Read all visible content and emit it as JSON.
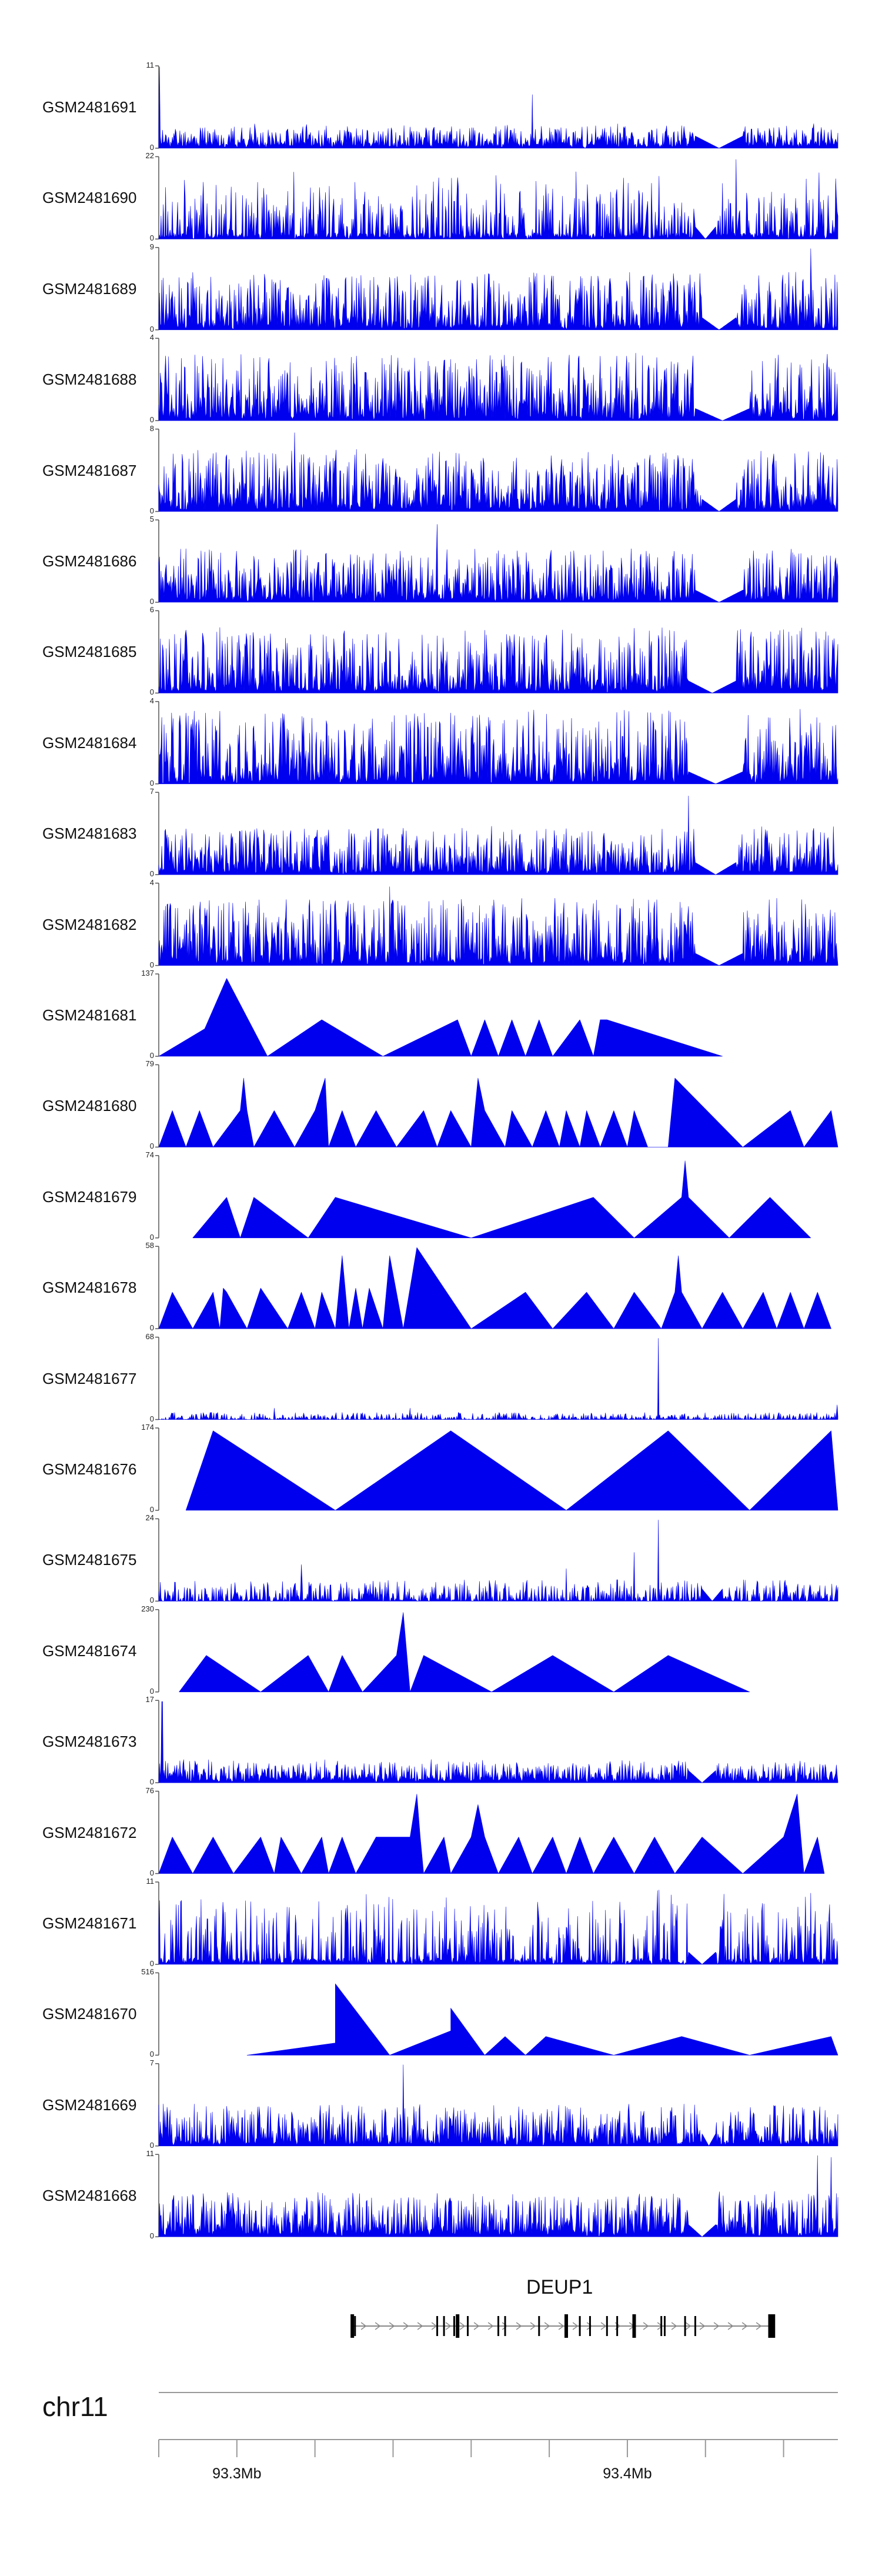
{
  "chart_data": {
    "type": "area",
    "tracks": [
      {
        "name": "GSM2481691",
        "ymax": "11",
        "ymin": "0",
        "profile": "dense",
        "seed": 11,
        "base": 0.16,
        "peaks": [
          {
            "x": 0.001,
            "h": 1.0
          },
          {
            "x": 0.55,
            "h": 0.66
          }
        ],
        "gaps": [
          [
            0.79,
            0.86
          ]
        ]
      },
      {
        "name": "GSM2481690",
        "ymax": "22",
        "ymin": "0",
        "profile": "spiky",
        "seed": 22,
        "base": 0.55,
        "peaks": [
          {
            "x": 0.85,
            "h": 0.98
          }
        ],
        "gaps": [
          [
            0.79,
            0.82
          ]
        ]
      },
      {
        "name": "GSM2481689",
        "ymax": "9",
        "ymin": "0",
        "profile": "dense",
        "seed": 33,
        "base": 0.42,
        "peaks": [
          {
            "x": 0.96,
            "h": 1.0
          }
        ],
        "gaps": [
          [
            0.8,
            0.85
          ]
        ]
      },
      {
        "name": "GSM2481688",
        "ymax": "4",
        "ymin": "0",
        "profile": "dense",
        "seed": 44,
        "base": 0.5,
        "peaks": [],
        "gaps": [
          [
            0.79,
            0.87
          ]
        ]
      },
      {
        "name": "GSM2481687",
        "ymax": "8",
        "ymin": "0",
        "profile": "dense",
        "seed": 55,
        "base": 0.45,
        "peaks": [
          {
            "x": 0.2,
            "h": 0.97
          }
        ],
        "gaps": [
          [
            0.8,
            0.85
          ]
        ]
      },
      {
        "name": "GSM2481686",
        "ymax": "5",
        "ymin": "0",
        "profile": "dense",
        "seed": 66,
        "base": 0.4,
        "peaks": [
          {
            "x": 0.41,
            "h": 0.96
          }
        ],
        "gaps": [
          [
            0.79,
            0.86
          ]
        ]
      },
      {
        "name": "GSM2481685",
        "ymax": "6",
        "ymin": "0",
        "profile": "dense",
        "seed": 77,
        "base": 0.48,
        "peaks": [],
        "gaps": [
          [
            0.78,
            0.85
          ]
        ]
      },
      {
        "name": "GSM2481684",
        "ymax": "4",
        "ymin": "0",
        "profile": "dense",
        "seed": 88,
        "base": 0.55,
        "peaks": [],
        "gaps": [
          [
            0.78,
            0.86
          ]
        ]
      },
      {
        "name": "GSM2481683",
        "ymax": "7",
        "ymin": "0",
        "profile": "dense",
        "seed": 99,
        "base": 0.35,
        "peaks": [
          {
            "x": 0.78,
            "h": 0.97
          }
        ],
        "gaps": [
          [
            0.79,
            0.85
          ]
        ]
      },
      {
        "name": "GSM2481682",
        "ymax": "4",
        "ymin": "0",
        "profile": "dense",
        "seed": 111,
        "base": 0.5,
        "peaks": [
          {
            "x": 0.34,
            "h": 0.97
          }
        ],
        "gaps": [
          [
            0.79,
            0.86
          ]
        ]
      },
      {
        "name": "GSM2481681",
        "ymax": "137",
        "ymin": "0",
        "profile": "sparse",
        "points": [
          [
            0.0,
            0
          ],
          [
            0.09,
            0.45
          ],
          [
            0.05,
            0
          ],
          [
            0.1,
            0.96
          ],
          [
            0.16,
            0
          ],
          [
            0.24,
            0.45
          ],
          [
            0.33,
            0
          ],
          [
            0.44,
            0.45
          ],
          [
            0.46,
            0
          ],
          [
            0.48,
            0.45
          ],
          [
            0.5,
            0
          ],
          [
            0.52,
            0.45
          ],
          [
            0.54,
            0
          ],
          [
            0.56,
            0.45
          ],
          [
            0.58,
            0
          ],
          [
            0.62,
            0.45
          ],
          [
            0.64,
            0
          ],
          [
            0.65,
            0.45
          ],
          [
            0.66,
            0.45
          ],
          [
            0.83,
            0
          ]
        ]
      },
      {
        "name": "GSM2481680",
        "ymax": "79",
        "ymin": "0",
        "profile": "sparse",
        "points": [
          [
            0.0,
            0
          ],
          [
            0.02,
            0.45
          ],
          [
            0.04,
            0
          ],
          [
            0.06,
            0.45
          ],
          [
            0.08,
            0
          ],
          [
            0.12,
            0.45
          ],
          [
            0.125,
            0.85
          ],
          [
            0.13,
            0.45
          ],
          [
            0.14,
            0
          ],
          [
            0.17,
            0.45
          ],
          [
            0.2,
            0
          ],
          [
            0.23,
            0.45
          ],
          [
            0.245,
            0.85
          ],
          [
            0.25,
            0
          ],
          [
            0.27,
            0.45
          ],
          [
            0.29,
            0
          ],
          [
            0.32,
            0.45
          ],
          [
            0.35,
            0
          ],
          [
            0.39,
            0.45
          ],
          [
            0.41,
            0
          ],
          [
            0.43,
            0.45
          ],
          [
            0.46,
            0
          ],
          [
            0.47,
            0.85
          ],
          [
            0.48,
            0.45
          ],
          [
            0.51,
            0
          ],
          [
            0.52,
            0.45
          ],
          [
            0.55,
            0
          ],
          [
            0.57,
            0.45
          ],
          [
            0.59,
            0
          ],
          [
            0.6,
            0.45
          ],
          [
            0.62,
            0
          ],
          [
            0.63,
            0.45
          ],
          [
            0.65,
            0
          ],
          [
            0.67,
            0.45
          ],
          [
            0.69,
            0
          ],
          [
            0.7,
            0.45
          ],
          [
            0.72,
            0
          ],
          [
            0.75,
            0
          ],
          [
            0.76,
            0.85
          ],
          [
            0.86,
            0
          ],
          [
            0.93,
            0.45
          ],
          [
            0.95,
            0
          ],
          [
            0.99,
            0.45
          ],
          [
            1.0,
            0
          ]
        ]
      },
      {
        "name": "GSM2481679",
        "ymax": "74",
        "ymin": "0",
        "profile": "sparse",
        "points": [
          [
            0.05,
            0
          ],
          [
            0.1,
            0.5
          ],
          [
            0.12,
            0
          ],
          [
            0.14,
            0.5
          ],
          [
            0.22,
            0
          ],
          [
            0.26,
            0.5
          ],
          [
            0.46,
            0
          ],
          [
            0.64,
            0.5
          ],
          [
            0.7,
            0
          ],
          [
            0.77,
            0.5
          ],
          [
            0.775,
            0.95
          ],
          [
            0.78,
            0.5
          ],
          [
            0.84,
            0
          ],
          [
            0.9,
            0.5
          ],
          [
            0.96,
            0
          ]
        ]
      },
      {
        "name": "GSM2481678",
        "ymax": "58",
        "ymin": "0",
        "profile": "sparse",
        "points": [
          [
            0.0,
            0
          ],
          [
            0.02,
            0.45
          ],
          [
            0.05,
            0
          ],
          [
            0.08,
            0.45
          ],
          [
            0.09,
            0
          ],
          [
            0.095,
            0.5
          ],
          [
            0.1,
            0.45
          ],
          [
            0.13,
            0
          ],
          [
            0.15,
            0.5
          ],
          [
            0.19,
            0
          ],
          [
            0.21,
            0.45
          ],
          [
            0.23,
            0
          ],
          [
            0.24,
            0.45
          ],
          [
            0.26,
            0
          ],
          [
            0.27,
            0.9
          ],
          [
            0.28,
            0
          ],
          [
            0.29,
            0.5
          ],
          [
            0.3,
            0
          ],
          [
            0.31,
            0.5
          ],
          [
            0.33,
            0
          ],
          [
            0.34,
            0.9
          ],
          [
            0.36,
            0
          ],
          [
            0.38,
            1.0
          ],
          [
            0.46,
            0
          ],
          [
            0.54,
            0.45
          ],
          [
            0.58,
            0
          ],
          [
            0.63,
            0.45
          ],
          [
            0.67,
            0
          ],
          [
            0.7,
            0.45
          ],
          [
            0.74,
            0
          ],
          [
            0.76,
            0.45
          ],
          [
            0.765,
            0.9
          ],
          [
            0.77,
            0.45
          ],
          [
            0.8,
            0
          ],
          [
            0.83,
            0.45
          ],
          [
            0.86,
            0
          ],
          [
            0.89,
            0.45
          ],
          [
            0.91,
            0
          ],
          [
            0.93,
            0.45
          ],
          [
            0.95,
            0
          ],
          [
            0.97,
            0.45
          ],
          [
            0.99,
            0
          ]
        ]
      },
      {
        "name": "GSM2481677",
        "ymax": "68",
        "ymin": "0",
        "profile": "flat",
        "seed": 177,
        "base": 0.04,
        "peaks": [
          {
            "x": 0.736,
            "h": 1.0
          },
          {
            "x": 0.17,
            "h": 0.14
          },
          {
            "x": 0.37,
            "h": 0.14
          },
          {
            "x": 0.999,
            "h": 0.18
          }
        ],
        "gaps": []
      },
      {
        "name": "GSM2481676",
        "ymax": "174",
        "ymin": "0",
        "profile": "sparse",
        "points": [
          [
            0.04,
            0
          ],
          [
            0.08,
            0.98
          ],
          [
            0.26,
            0
          ],
          [
            0.43,
            0.98
          ],
          [
            0.6,
            0
          ],
          [
            0.75,
            0.98
          ],
          [
            0.87,
            0
          ],
          [
            0.99,
            0.98
          ],
          [
            1.0,
            0
          ]
        ]
      },
      {
        "name": "GSM2481675",
        "ymax": "24",
        "ymin": "0",
        "profile": "flat",
        "seed": 175,
        "base": 0.12,
        "peaks": [
          {
            "x": 0.736,
            "h": 1.0
          },
          {
            "x": 0.21,
            "h": 0.45
          },
          {
            "x": 0.6,
            "h": 0.4
          },
          {
            "x": 0.7,
            "h": 0.6
          }
        ],
        "gaps": [
          [
            0.8,
            0.83
          ]
        ]
      },
      {
        "name": "GSM2481674",
        "ymax": "230",
        "ymin": "0",
        "profile": "sparse",
        "points": [
          [
            0.03,
            0
          ],
          [
            0.07,
            0.45
          ],
          [
            0.15,
            0
          ],
          [
            0.22,
            0.45
          ],
          [
            0.25,
            0
          ],
          [
            0.27,
            0.45
          ],
          [
            0.3,
            0
          ],
          [
            0.35,
            0.45
          ],
          [
            0.36,
            0.98
          ],
          [
            0.37,
            0
          ],
          [
            0.39,
            0.45
          ],
          [
            0.49,
            0
          ],
          [
            0.58,
            0.45
          ],
          [
            0.67,
            0
          ],
          [
            0.75,
            0.45
          ],
          [
            0.87,
            0
          ]
        ]
      },
      {
        "name": "GSM2481673",
        "ymax": "17",
        "ymin": "0",
        "profile": "dense",
        "seed": 173,
        "base": 0.15,
        "peaks": [
          {
            "x": 0.005,
            "h": 1.0
          }
        ],
        "gaps": [
          [
            0.78,
            0.82
          ]
        ]
      },
      {
        "name": "GSM2481672",
        "ymax": "76",
        "ymin": "0",
        "profile": "sparse",
        "points": [
          [
            0.0,
            0
          ],
          [
            0.02,
            0.45
          ],
          [
            0.05,
            0
          ],
          [
            0.08,
            0.45
          ],
          [
            0.11,
            0
          ],
          [
            0.15,
            0.45
          ],
          [
            0.17,
            0
          ],
          [
            0.18,
            0.45
          ],
          [
            0.21,
            0
          ],
          [
            0.24,
            0.45
          ],
          [
            0.25,
            0
          ],
          [
            0.27,
            0.45
          ],
          [
            0.29,
            0
          ],
          [
            0.32,
            0.45
          ],
          [
            0.37,
            0.45
          ],
          [
            0.38,
            0.98
          ],
          [
            0.385,
            0.45
          ],
          [
            0.39,
            0
          ],
          [
            0.42,
            0.45
          ],
          [
            0.43,
            0
          ],
          [
            0.46,
            0.45
          ],
          [
            0.47,
            0.85
          ],
          [
            0.48,
            0.45
          ],
          [
            0.5,
            0
          ],
          [
            0.53,
            0.45
          ],
          [
            0.55,
            0
          ],
          [
            0.58,
            0.45
          ],
          [
            0.6,
            0
          ],
          [
            0.62,
            0.45
          ],
          [
            0.64,
            0
          ],
          [
            0.67,
            0.45
          ],
          [
            0.7,
            0
          ],
          [
            0.73,
            0.45
          ],
          [
            0.76,
            0
          ],
          [
            0.8,
            0.45
          ],
          [
            0.86,
            0
          ],
          [
            0.92,
            0.45
          ],
          [
            0.94,
            0.98
          ],
          [
            0.95,
            0
          ],
          [
            0.97,
            0.45
          ],
          [
            0.98,
            0
          ]
        ]
      },
      {
        "name": "GSM2481671",
        "ymax": "11",
        "ymin": "0",
        "profile": "spiky",
        "seed": 171,
        "base": 0.6,
        "peaks": [],
        "gaps": [
          [
            0.78,
            0.82
          ]
        ]
      },
      {
        "name": "GSM2481670",
        "ymax": "516",
        "ymin": "0",
        "profile": "sparse",
        "points": [
          [
            0.13,
            0
          ],
          [
            0.26,
            0.15
          ],
          [
            0.26,
            0.88
          ],
          [
            0.34,
            0
          ],
          [
            0.43,
            0.3
          ],
          [
            0.43,
            0.58
          ],
          [
            0.48,
            0
          ],
          [
            0.51,
            0.23
          ],
          [
            0.54,
            0
          ],
          [
            0.57,
            0.23
          ],
          [
            0.67,
            0
          ],
          [
            0.77,
            0.23
          ],
          [
            0.87,
            0
          ],
          [
            0.99,
            0.23
          ],
          [
            1.0,
            0
          ]
        ]
      },
      {
        "name": "GSM2481669",
        "ymax": "7",
        "ymin": "0",
        "profile": "dense",
        "seed": 169,
        "base": 0.3,
        "peaks": [
          {
            "x": 0.36,
            "h": 1.0
          }
        ],
        "gaps": [
          [
            0.8,
            0.82
          ]
        ]
      },
      {
        "name": "GSM2481668",
        "ymax": "11",
        "ymin": "0",
        "profile": "dense",
        "seed": 168,
        "base": 0.32,
        "peaks": [
          {
            "x": 0.97,
            "h": 1.0
          },
          {
            "x": 0.99,
            "h": 0.98
          }
        ],
        "gaps": [
          [
            0.78,
            0.82
          ]
        ]
      }
    ],
    "gene": {
      "name": "DEUP1",
      "start": 0.285,
      "end": 0.905,
      "exons": [
        0.285,
        0.289,
        0.41,
        0.42,
        0.435,
        0.44,
        0.455,
        0.5,
        0.51,
        0.56,
        0.6,
        0.62,
        0.635,
        0.66,
        0.675,
        0.7,
        0.74,
        0.745,
        0.775,
        0.79,
        0.9,
        0.905
      ]
    },
    "chromosome": "chr11",
    "axis": {
      "ticks": [
        {
          "x": 0.0,
          "label": ""
        },
        {
          "x": 0.115,
          "label": "93.3Mb"
        },
        {
          "x": 0.23,
          "label": ""
        },
        {
          "x": 0.345,
          "label": ""
        },
        {
          "x": 0.46,
          "label": ""
        },
        {
          "x": 0.575,
          "label": ""
        },
        {
          "x": 0.69,
          "label": "93.4Mb"
        },
        {
          "x": 0.805,
          "label": ""
        },
        {
          "x": 0.92,
          "label": ""
        }
      ]
    },
    "colors": {
      "fill": "#0000ee",
      "stroke": "#000080",
      "axis": "#555555",
      "gene": "#000000"
    }
  }
}
